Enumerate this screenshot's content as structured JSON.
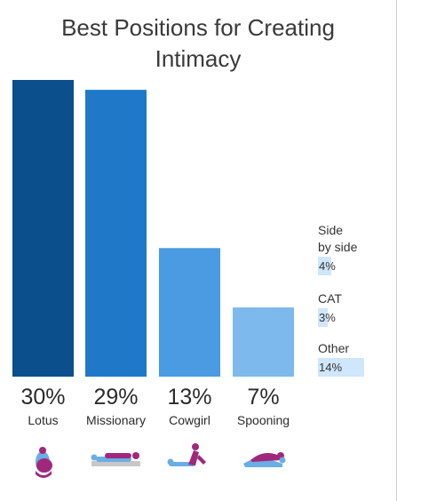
{
  "title_line1": "Best Positions for Creating",
  "title_line2": "Intimacy",
  "chart_data": {
    "type": "bar",
    "title": "Best Positions for Creating Intimacy",
    "categories": [
      "Lotus",
      "Missionary",
      "Cowgirl",
      "Spooning"
    ],
    "values": [
      30,
      29,
      13,
      7
    ],
    "value_labels": [
      "30%",
      "29%",
      "13%",
      "7%"
    ],
    "colors": [
      "#0b4f8d",
      "#1f78c8",
      "#4a9be1",
      "#7db9ec"
    ],
    "ylim": [
      0,
      30
    ],
    "icons": [
      "lotus-icon",
      "missionary-icon",
      "cowgirl-icon",
      "spooning-icon"
    ],
    "other_series": [
      {
        "label": "Side\nby side",
        "value": 4,
        "value_label": "4%"
      },
      {
        "label": "CAT",
        "value": 3,
        "value_label": "3%"
      },
      {
        "label": "Other",
        "value": 14,
        "value_label": "14%"
      }
    ],
    "other_color": "#cfe6fb"
  }
}
